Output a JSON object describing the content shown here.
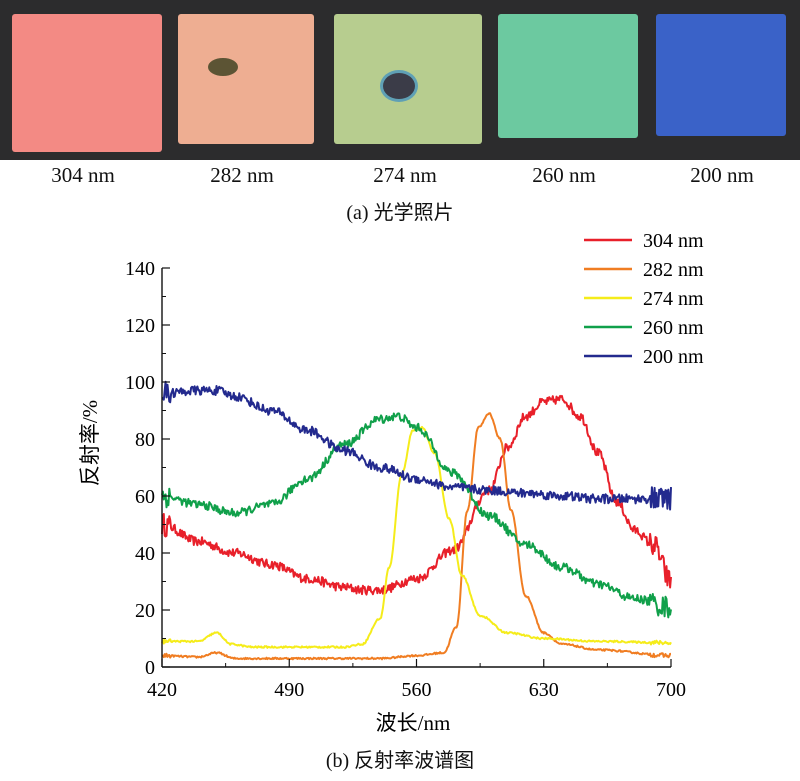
{
  "photo": {
    "caption": "(a) 光学照片",
    "samples": [
      {
        "label": "304 nm",
        "color": "#f38a84"
      },
      {
        "label": "282 nm",
        "color": "#eeae92"
      },
      {
        "label": "274 nm",
        "color": "#b7cd8f"
      },
      {
        "label": "260 nm",
        "color": "#6cc9a0"
      },
      {
        "label": "200 nm",
        "color": "#3a62c8"
      }
    ]
  },
  "chart_caption": "(b) 反射率波谱图",
  "chart_data": {
    "type": "line",
    "title": "",
    "xlabel": "波长/nm",
    "ylabel": "反射率/%",
    "xlim": [
      420,
      700
    ],
    "ylim": [
      0,
      140
    ],
    "xticks": [
      420,
      490,
      560,
      630,
      700
    ],
    "yticks": [
      0,
      20,
      40,
      60,
      80,
      100,
      120,
      140
    ],
    "legend_position": "top-right",
    "series": [
      {
        "name": "304 nm",
        "color": "#e8202a",
        "noise": 1.6,
        "x": [
          420,
          440,
          460,
          480,
          500,
          520,
          530,
          540,
          560,
          580,
          600,
          610,
          620,
          630,
          640,
          650,
          660,
          670,
          680,
          690,
          700
        ],
        "y": [
          50,
          44,
          40,
          36,
          31,
          28,
          27,
          27,
          31,
          41,
          62,
          77,
          88,
          93,
          94,
          88,
          75,
          58,
          48,
          43,
          30
        ]
      },
      {
        "name": "282 nm",
        "color": "#f07d22",
        "noise": 0.3,
        "x": [
          420,
          440,
          450,
          460,
          480,
          500,
          540,
          560,
          575,
          582,
          588,
          594,
          600,
          606,
          612,
          620,
          630,
          640,
          660,
          700
        ],
        "y": [
          4,
          3.5,
          5,
          3,
          3,
          3,
          3,
          4,
          5,
          14,
          55,
          84,
          89,
          80,
          55,
          25,
          12,
          8,
          6,
          4
        ],
        "labelOffset": [
          -8,
          0
        ]
      },
      {
        "name": "274 nm",
        "color": "#f5ec1a",
        "noise": 0.3,
        "x": [
          420,
          440,
          450,
          458,
          470,
          480,
          500,
          520,
          530,
          540,
          545,
          552,
          558,
          563,
          570,
          578,
          585,
          595,
          610,
          630,
          660,
          700
        ],
        "y": [
          9,
          9,
          12,
          8,
          7,
          7,
          7,
          7,
          8,
          17,
          35,
          68,
          83,
          84,
          75,
          52,
          32,
          18,
          12,
          10,
          9,
          8.5
        ]
      },
      {
        "name": "260 nm",
        "color": "#10a04a",
        "noise": 1.5,
        "x": [
          420,
          440,
          460,
          480,
          500,
          520,
          540,
          550,
          560,
          580,
          600,
          620,
          640,
          660,
          680,
          700
        ],
        "y": [
          60,
          57,
          54,
          57,
          66,
          78,
          87,
          88,
          84,
          68,
          53,
          43,
          35,
          29,
          24,
          21
        ]
      },
      {
        "name": "200 nm",
        "color": "#232a8e",
        "noise": 1.6,
        "x": [
          420,
          440,
          450,
          460,
          480,
          500,
          520,
          540,
          560,
          580,
          600,
          620,
          640,
          660,
          680,
          700
        ],
        "y": [
          96,
          97,
          97,
          95,
          90,
          83,
          76,
          70,
          66,
          63,
          62,
          61,
          60,
          59,
          59,
          59
        ]
      }
    ]
  }
}
